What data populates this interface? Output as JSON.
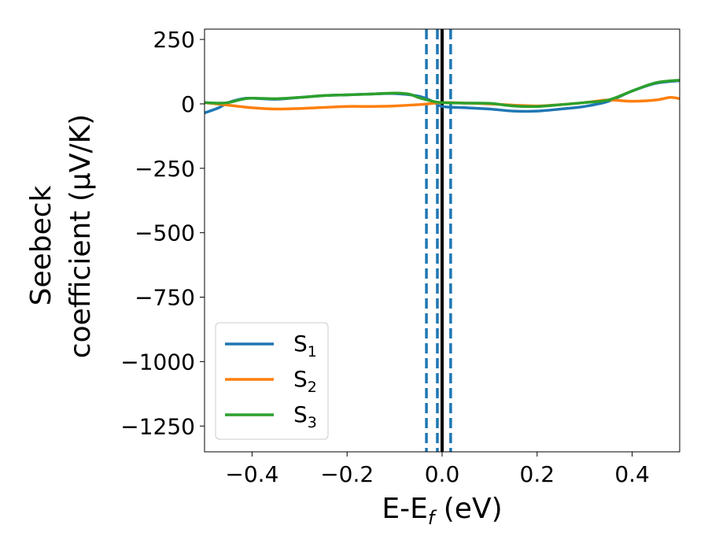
{
  "chart_data": {
    "type": "line",
    "xlabel": "E-E",
    "xlabel_sub": "f",
    "xlabel_unit": " (eV)",
    "ylabel_line1": "Seebeck",
    "ylabel_line2": "coefficient  (μV/K)",
    "xlim": [
      -0.5,
      0.5
    ],
    "ylim": [
      -1350,
      290
    ],
    "xticks": [
      -0.4,
      -0.2,
      0.0,
      0.2,
      0.4
    ],
    "xtick_labels": [
      "−0.4",
      "−0.2",
      "0.0",
      "0.2",
      "0.4"
    ],
    "yticks": [
      250,
      0,
      -250,
      -500,
      -750,
      -1000,
      -1250
    ],
    "ytick_labels": [
      "250",
      "0",
      "−250",
      "−500",
      "−750",
      "−1000",
      "−1250"
    ],
    "grid": false,
    "legend_position": "lower-left",
    "vlines": [
      {
        "x": 0.0,
        "color": "#000000",
        "style": "solid"
      },
      {
        "x": -0.033,
        "color": "#1f77b4",
        "style": "dashed"
      },
      {
        "x": -0.01,
        "color": "#1f77b4",
        "style": "dashed"
      },
      {
        "x": 0.018,
        "color": "#1f77b4",
        "style": "dashed"
      }
    ],
    "series": [
      {
        "name": "S",
        "sub": "1",
        "color": "#1f77b4",
        "x": [
          -0.5,
          -0.47,
          -0.45,
          -0.42,
          -0.4,
          -0.35,
          -0.3,
          -0.25,
          -0.2,
          -0.15,
          -0.1,
          -0.05,
          -0.02,
          0.0,
          0.05,
          0.1,
          0.15,
          0.2,
          0.25,
          0.3,
          0.35,
          0.4,
          0.45,
          0.5
        ],
        "y": [
          -35,
          -15,
          5,
          20,
          22,
          18,
          25,
          32,
          35,
          38,
          40,
          30,
          10,
          -10,
          -15,
          -20,
          -28,
          -28,
          -20,
          -10,
          10,
          50,
          80,
          90
        ]
      },
      {
        "name": "S",
        "sub": "2",
        "color": "#ff7f0e",
        "x": [
          -0.5,
          -0.45,
          -0.4,
          -0.35,
          -0.3,
          -0.25,
          -0.2,
          -0.15,
          -0.1,
          -0.05,
          -0.03,
          0.0,
          0.05,
          0.1,
          0.15,
          0.2,
          0.25,
          0.3,
          0.35,
          0.4,
          0.45,
          0.48,
          0.5
        ],
        "y": [
          5,
          -5,
          -15,
          -20,
          -18,
          -14,
          -10,
          -10,
          -8,
          -3,
          0,
          5,
          3,
          0,
          -5,
          -8,
          -3,
          5,
          15,
          10,
          15,
          25,
          20
        ]
      },
      {
        "name": "S",
        "sub": "3",
        "color": "#2ca02c",
        "x": [
          -0.5,
          -0.47,
          -0.45,
          -0.42,
          -0.4,
          -0.35,
          -0.3,
          -0.25,
          -0.2,
          -0.15,
          -0.1,
          -0.07,
          -0.05,
          -0.02,
          0.0,
          0.05,
          0.1,
          0.15,
          0.2,
          0.25,
          0.3,
          0.35,
          0.4,
          0.45,
          0.5
        ],
        "y": [
          5,
          3,
          5,
          18,
          22,
          20,
          25,
          32,
          35,
          38,
          42,
          38,
          25,
          10,
          5,
          3,
          2,
          -8,
          -10,
          -3,
          5,
          15,
          50,
          82,
          92
        ]
      }
    ]
  }
}
